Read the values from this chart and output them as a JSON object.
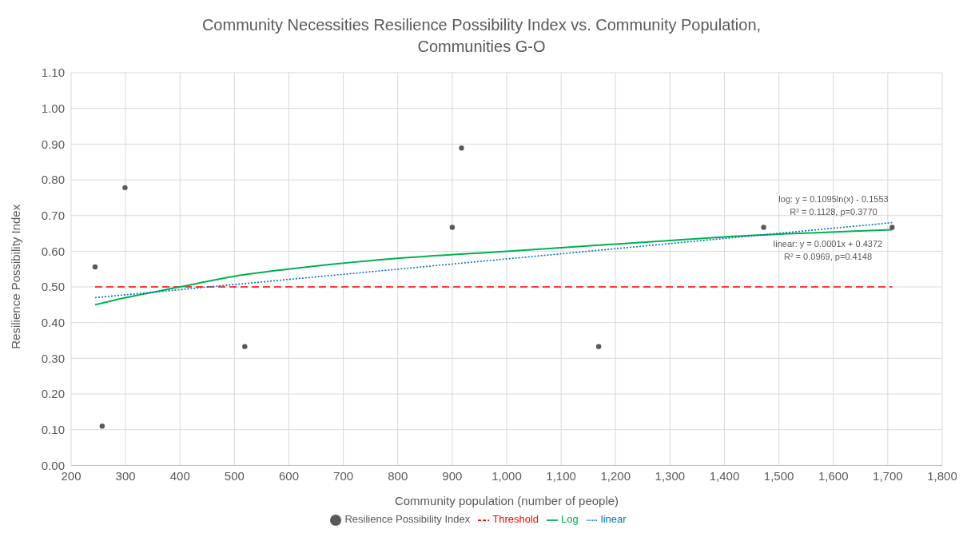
{
  "chart_data": {
    "type": "scatter",
    "title": "Community Necessities Resilience Possibility Index vs. Community Population,\nCommunities G-O",
    "xlabel": "Community population (number of people)",
    "ylabel": "Resilience Possibility Index",
    "xlim": [
      200,
      1800
    ],
    "xticks": [
      200,
      300,
      400,
      500,
      600,
      700,
      800,
      900,
      {
        "value": 1000,
        "label": "1,000"
      },
      {
        "value": 1100,
        "label": "1,100"
      },
      {
        "value": 1200,
        "label": "1,200"
      },
      {
        "value": 1300,
        "label": "1,300"
      },
      {
        "value": 1400,
        "label": "1,400"
      },
      {
        "value": 1500,
        "label": "1,500"
      },
      {
        "value": 1600,
        "label": "1,600"
      },
      {
        "value": 1700,
        "label": "1,700"
      },
      {
        "value": 1800,
        "label": "1,800"
      }
    ],
    "ylim": [
      0,
      1.1
    ],
    "yticks": [
      {
        "value": 0,
        "label": "0.00"
      },
      {
        "value": 0.1,
        "label": "0.10"
      },
      {
        "value": 0.2,
        "label": "0.20"
      },
      {
        "value": 0.3,
        "label": "0.30"
      },
      {
        "value": 0.4,
        "label": "0.40"
      },
      {
        "value": 0.5,
        "label": "0.50"
      },
      {
        "value": 0.6,
        "label": "0.60"
      },
      {
        "value": 0.7,
        "label": "0.70"
      },
      {
        "value": 0.8,
        "label": "0.80"
      },
      {
        "value": 0.9,
        "label": "0.90"
      },
      {
        "value": 1.0,
        "label": "1.00"
      },
      {
        "value": 1.1,
        "label": "1.10"
      }
    ],
    "grid": true,
    "legend": "bottom",
    "series": [
      {
        "name": "Resilience Possibility Index",
        "marker": "circle",
        "color": "#595959",
        "x": [
          244,
          257,
          299,
          519,
          900,
          917,
          1169,
          1472,
          1708
        ],
        "values": [
          0.556,
          0.11,
          0.778,
          0.333,
          0.667,
          0.889,
          0.333,
          0.667,
          0.667
        ]
      },
      {
        "name": "Threshold",
        "type": "line",
        "marker": "none",
        "line_style": "dashed",
        "color": "#ff0000",
        "x": [
          244,
          1708
        ],
        "values": [
          0.5,
          0.5
        ]
      },
      {
        "name": "Log",
        "type": "line",
        "marker": "none",
        "line_style": "solid",
        "color": "#00b050",
        "x": [
          244,
          300,
          400,
          500,
          600,
          800,
          1000,
          1200,
          1400,
          1708
        ],
        "values": [
          0.45,
          0.47,
          0.5,
          0.53,
          0.55,
          0.58,
          0.6,
          0.62,
          0.64,
          0.66
        ]
      },
      {
        "name": "linear",
        "type": "line",
        "marker": "none",
        "line_style": "dotted",
        "color": "#0070c0",
        "x": [
          244,
          1708
        ],
        "values": [
          0.47,
          0.68
        ]
      }
    ],
    "annotations": [
      "log: y = 0.1095ln(x) - 0.1553",
      "R² = 0.1128, p=0.3770",
      "linear: y = 0.0001x + 0.4372",
      "R² = 0.0969, p=0.4148"
    ]
  }
}
